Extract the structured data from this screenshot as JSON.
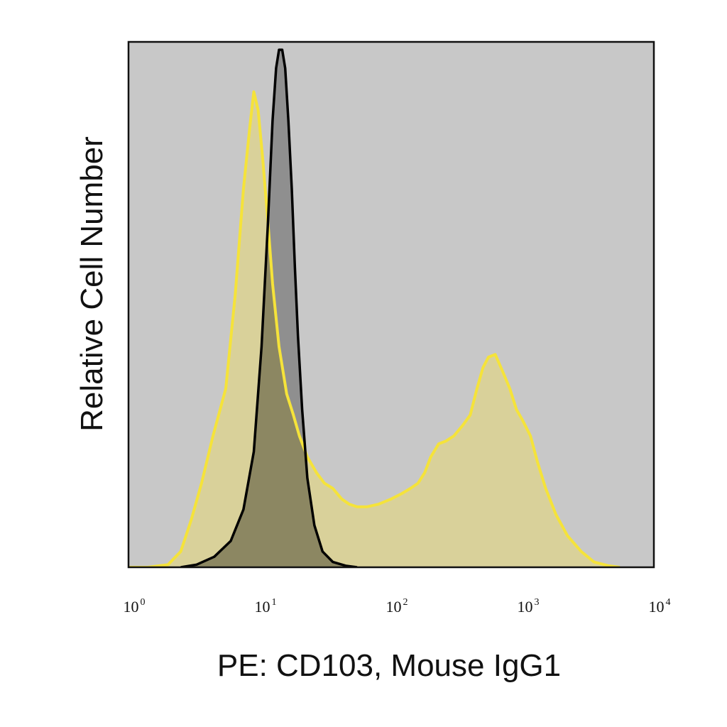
{
  "chart_data": {
    "type": "area",
    "title": "",
    "xlabel": "PE: CD103, Mouse IgG1",
    "ylabel": "Relative Cell Number",
    "x_scale": "log",
    "xlim": [
      1,
      10000
    ],
    "ylim": [
      0,
      1
    ],
    "grid": false,
    "legend": "none",
    "x_ticks": [
      {
        "base": "10",
        "exp": "0",
        "value": 1
      },
      {
        "base": "10",
        "exp": "1",
        "value": 10
      },
      {
        "base": "10",
        "exp": "2",
        "value": 100
      },
      {
        "base": "10",
        "exp": "3",
        "value": 1000
      },
      {
        "base": "10",
        "exp": "4",
        "value": 10000
      }
    ],
    "colors": {
      "plot_background": "#c8c8c8",
      "cd103_fill": "#d9d19a",
      "cd103_line": "#f5e33a",
      "isotype_fill": "#8f8f8f",
      "isotype_line": "#000000",
      "overlap_fill": "#8c8762"
    },
    "series": [
      {
        "key": "cd103",
        "x": [
          1,
          1.4,
          2,
          2.5,
          3,
          3.6,
          4.4,
          5.5,
          6.5,
          7.5,
          8.4,
          9,
          9.7,
          10.5,
          11.5,
          12.5,
          14,
          16,
          18,
          20,
          23,
          27,
          31,
          36,
          42,
          48,
          55,
          65,
          80,
          100,
          120,
          140,
          160,
          180,
          200,
          230,
          260,
          300,
          350,
          400,
          450,
          500,
          550,
          620,
          700,
          800,
          900,
          1000,
          1150,
          1300,
          1500,
          1800,
          2200,
          2800,
          3500,
          4500,
          5500
        ],
        "y": [
          0,
          0,
          0.005,
          0.03,
          0.09,
          0.16,
          0.25,
          0.34,
          0.52,
          0.72,
          0.84,
          0.905,
          0.87,
          0.78,
          0.66,
          0.54,
          0.42,
          0.33,
          0.29,
          0.25,
          0.21,
          0.18,
          0.16,
          0.15,
          0.13,
          0.12,
          0.115,
          0.115,
          0.12,
          0.13,
          0.14,
          0.15,
          0.16,
          0.18,
          0.21,
          0.235,
          0.24,
          0.25,
          0.27,
          0.29,
          0.34,
          0.38,
          0.4,
          0.405,
          0.375,
          0.34,
          0.3,
          0.28,
          0.25,
          0.2,
          0.15,
          0.1,
          0.06,
          0.03,
          0.01,
          0.003,
          0
        ]
      },
      {
        "key": "isotype",
        "x": [
          2.5,
          3.3,
          4.5,
          6,
          7.5,
          9,
          10.3,
          11.5,
          12.5,
          13.3,
          14,
          14.8,
          15.6,
          16.5,
          17.5,
          18.5,
          19.5,
          21,
          23,
          26,
          30,
          36,
          45,
          55
        ],
        "y": [
          0,
          0.005,
          0.02,
          0.05,
          0.11,
          0.22,
          0.42,
          0.65,
          0.85,
          0.95,
          0.985,
          0.985,
          0.95,
          0.85,
          0.72,
          0.57,
          0.44,
          0.3,
          0.17,
          0.08,
          0.03,
          0.01,
          0.003,
          0
        ]
      }
    ]
  }
}
